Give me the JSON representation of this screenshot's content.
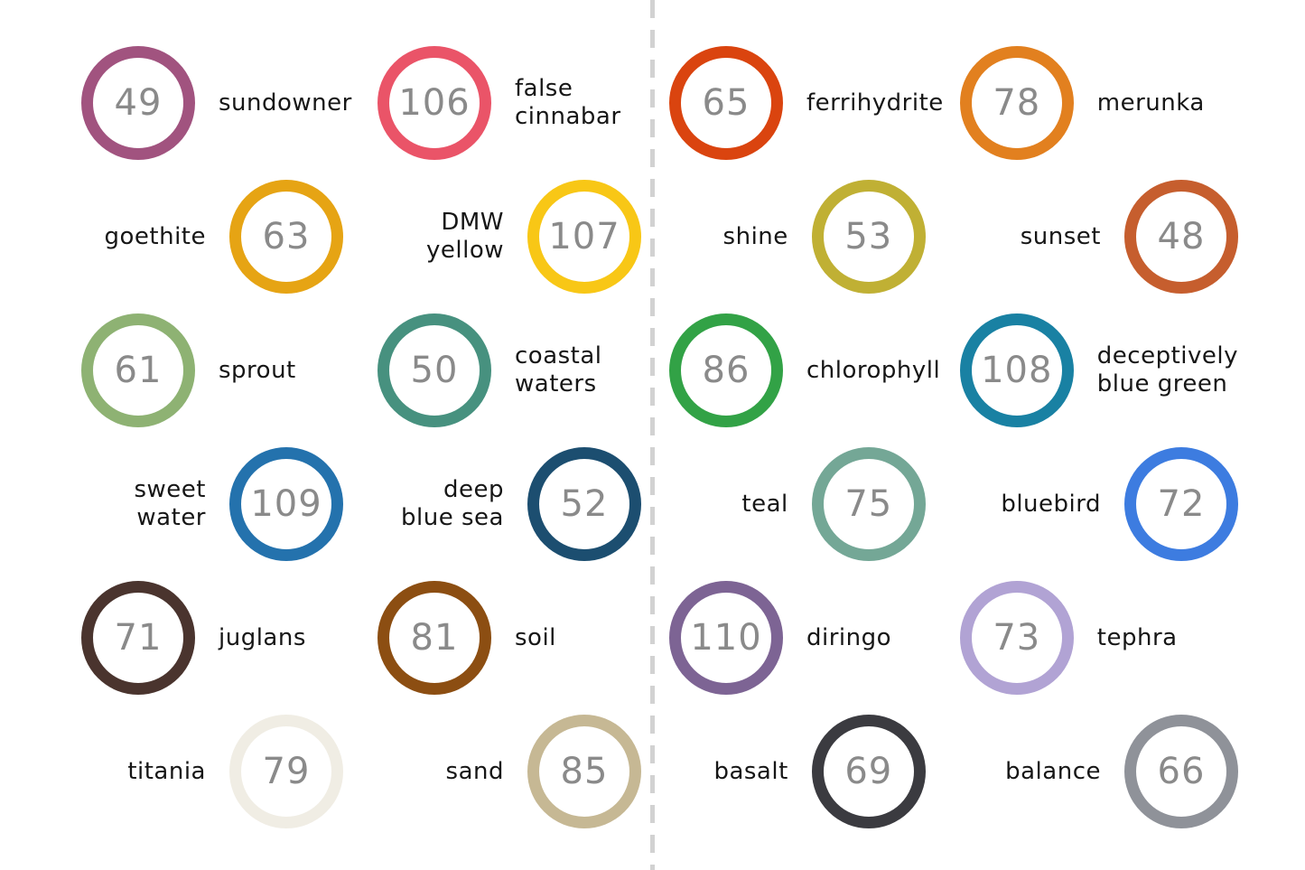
{
  "page": {
    "background": "#ffffff",
    "divider_color": "#d2d2d2",
    "number_color": "#8a8a8a",
    "label_color": "#161616"
  },
  "halves": [
    {
      "name": "left",
      "items": [
        {
          "number": "49",
          "label": "sundowner",
          "color": "#a1537f"
        },
        {
          "number": "106",
          "label": "false\ncinnabar",
          "color": "#ea5468"
        },
        {
          "number": "63",
          "label": "goethite",
          "color": "#e6a414"
        },
        {
          "number": "107",
          "label": "DMW yellow",
          "color": "#f8c716"
        },
        {
          "number": "61",
          "label": "sprout",
          "color": "#8eb273"
        },
        {
          "number": "50",
          "label": "coastal\nwaters",
          "color": "#47917f"
        },
        {
          "number": "109",
          "label": "sweet\nwater",
          "color": "#2472ad"
        },
        {
          "number": "52",
          "label": "deep\nblue sea",
          "color": "#1c4e70"
        },
        {
          "number": "71",
          "label": "juglans",
          "color": "#4a342e"
        },
        {
          "number": "81",
          "label": "soil",
          "color": "#8c4e12"
        },
        {
          "number": "79",
          "label": "titania",
          "color": "#f0ede4"
        },
        {
          "number": "85",
          "label": "sand",
          "color": "#c6b894"
        }
      ]
    },
    {
      "name": "right",
      "items": [
        {
          "number": "65",
          "label": "ferrihydrite",
          "color": "#da440f"
        },
        {
          "number": "78",
          "label": "merunka",
          "color": "#e2801f"
        },
        {
          "number": "53",
          "label": "shine",
          "color": "#c0b034"
        },
        {
          "number": "48",
          "label": "sunset",
          "color": "#c65e2e"
        },
        {
          "number": "86",
          "label": "chlorophyll",
          "color": "#32a246"
        },
        {
          "number": "108",
          "label": "deceptively\nblue green",
          "color": "#1981a3"
        },
        {
          "number": "75",
          "label": "teal",
          "color": "#74a796"
        },
        {
          "number": "72",
          "label": "bluebird",
          "color": "#3d7ce0"
        },
        {
          "number": "110",
          "label": "diringo",
          "color": "#7d6494"
        },
        {
          "number": "73",
          "label": "tephra",
          "color": "#b1a3d4"
        },
        {
          "number": "69",
          "label": "basalt",
          "color": "#3b3b40"
        },
        {
          "number": "66",
          "label": "balance",
          "color": "#8f9299"
        }
      ]
    }
  ]
}
